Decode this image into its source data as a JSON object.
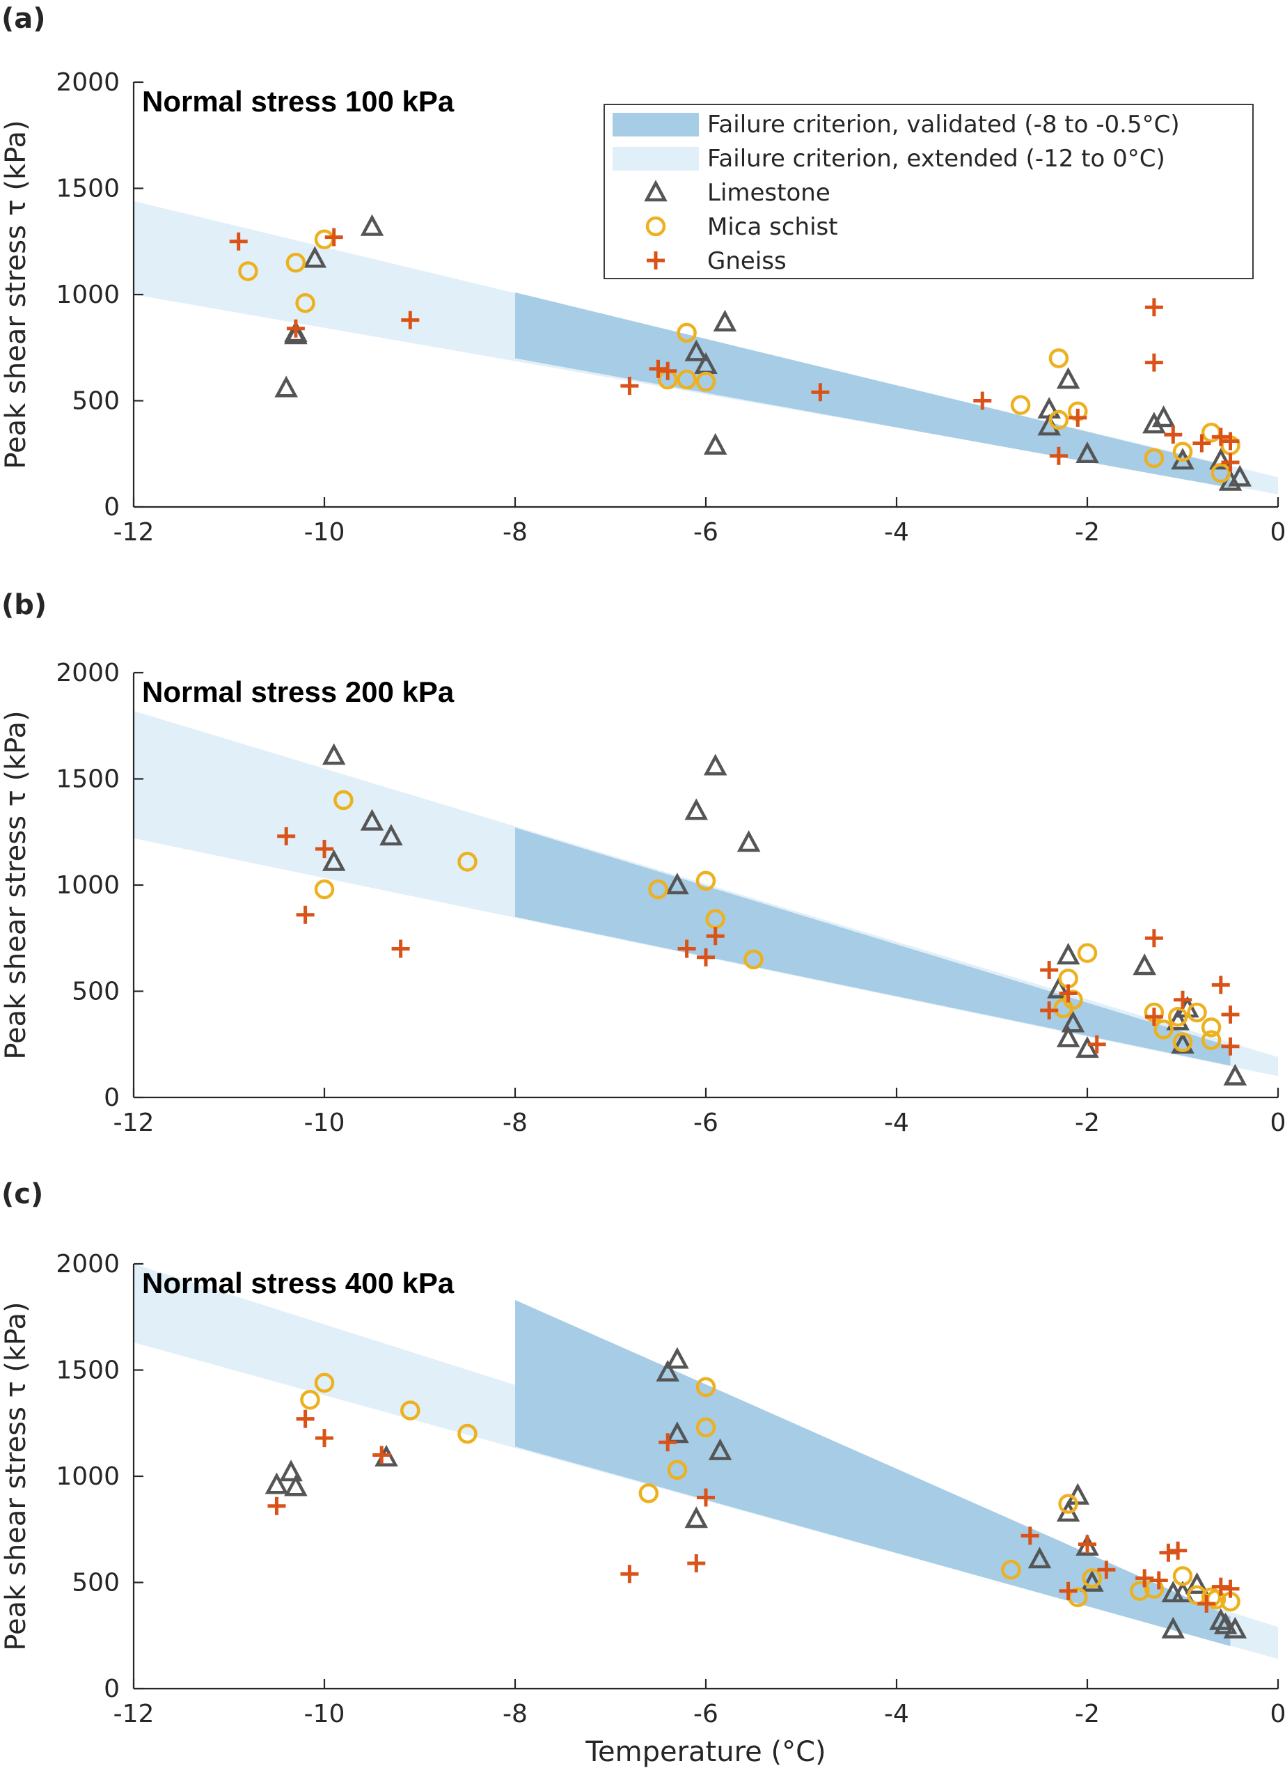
{
  "colors": {
    "validated": "#a6cce6",
    "extended": "#e1eff8",
    "limestone": "#555555",
    "mica_schist": "#edb120",
    "gneiss": "#d95319"
  },
  "legend": {
    "validated": "Failure criterion, validated (-8 to -0.5°C)",
    "extended": "Failure criterion, extended (-12 to 0°C)",
    "limestone": "Limestone",
    "mica_schist": "Mica schist",
    "gneiss": "Gneiss"
  },
  "axes": {
    "xlabel": "Temperature (°C)",
    "ylabel": "Peak shear stress τ (kPa)",
    "xlim": [
      -12,
      0
    ],
    "ylim": [
      0,
      2000
    ],
    "xticks": [
      "-12",
      "-10",
      "-8",
      "-6",
      "-4",
      "-2",
      "0"
    ],
    "yticks": [
      "0",
      "500",
      "1000",
      "1500",
      "2000"
    ]
  },
  "chart_data": [
    {
      "type": "scatter",
      "panel": "(a)",
      "title": "Normal stress 100 kPa",
      "xlabel": "",
      "ylabel": "Peak shear stress τ (kPa)",
      "xlim": [
        -12,
        0
      ],
      "ylim": [
        0,
        2000
      ],
      "grid": false,
      "legend_position": "top-right",
      "band_extended": {
        "x": [
          -12,
          0
        ],
        "upper": [
          1440,
          140
        ],
        "lower": [
          1000,
          60
        ]
      },
      "band_validated": {
        "x": [
          -8,
          -0.5
        ],
        "upper": [
          1010,
          190
        ],
        "lower": [
          700,
          90
        ]
      },
      "series": [
        {
          "name": "Limestone",
          "marker": "triangle",
          "x": [
            -10.4,
            -10.3,
            -10.3,
            -10.1,
            -9.5,
            -6.1,
            -6.0,
            -5.9,
            -5.8,
            -2.4,
            -2.4,
            -2.2,
            -2.0,
            -1.3,
            -1.2,
            -1.0,
            -0.6,
            -0.5,
            -0.4
          ],
          "y": [
            560,
            810,
            820,
            1170,
            1320,
            730,
            670,
            290,
            870,
            460,
            380,
            600,
            250,
            390,
            420,
            220,
            220,
            120,
            140
          ]
        },
        {
          "name": "Mica schist",
          "marker": "circle",
          "x": [
            -10.8,
            -10.3,
            -10.2,
            -10.0,
            -6.2,
            -6.4,
            -6.2,
            -6.0,
            -2.7,
            -2.3,
            -2.3,
            -2.1,
            -1.3,
            -1.0,
            -0.7,
            -0.6,
            -0.5
          ],
          "y": [
            1110,
            1150,
            960,
            1260,
            820,
            600,
            600,
            590,
            480,
            700,
            410,
            450,
            230,
            260,
            350,
            160,
            290
          ]
        },
        {
          "name": "Gneiss",
          "marker": "plus",
          "x": [
            -10.9,
            -10.3,
            -9.9,
            -9.1,
            -6.8,
            -6.5,
            -6.4,
            -4.8,
            -3.1,
            -2.3,
            -2.1,
            -1.3,
            -1.3,
            -1.1,
            -0.8,
            -0.6,
            -0.5,
            -0.5
          ],
          "y": [
            1250,
            840,
            1270,
            880,
            570,
            650,
            640,
            540,
            500,
            240,
            420,
            940,
            680,
            340,
            300,
            330,
            310,
            210
          ]
        }
      ]
    },
    {
      "type": "scatter",
      "panel": "(b)",
      "title": "Normal stress 200 kPa",
      "xlabel": "",
      "ylabel": "Peak shear stress τ (kPa)",
      "xlim": [
        -12,
        0
      ],
      "ylim": [
        0,
        2000
      ],
      "grid": false,
      "band_extended": {
        "x": [
          -12,
          0
        ],
        "upper": [
          1820,
          190
        ],
        "lower": [
          1220,
          100
        ]
      },
      "band_validated": {
        "x": [
          -8,
          -0.5
        ],
        "upper": [
          1270,
          240
        ],
        "lower": [
          850,
          150
        ]
      },
      "series": [
        {
          "name": "Limestone",
          "marker": "triangle",
          "x": [
            -9.9,
            -9.9,
            -9.5,
            -9.3,
            -6.3,
            -6.1,
            -5.9,
            -5.55,
            -2.2,
            -2.3,
            -2.15,
            -2.2,
            -2.0,
            -1.4,
            -1.05,
            -1.0,
            -0.95,
            -0.45
          ],
          "y": [
            1610,
            1110,
            1300,
            1230,
            1000,
            1350,
            1560,
            1200,
            670,
            510,
            350,
            280,
            230,
            620,
            360,
            250,
            420,
            100
          ]
        },
        {
          "name": "Mica schist",
          "marker": "circle",
          "x": [
            -9.8,
            -10.0,
            -8.5,
            -6.5,
            -6.0,
            -5.9,
            -5.5,
            -2.2,
            -2.0,
            -2.15,
            -2.25,
            -1.3,
            -1.2,
            -1.05,
            -0.85,
            -0.7,
            -0.7,
            -1.0
          ],
          "y": [
            1400,
            980,
            1110,
            980,
            1020,
            840,
            650,
            560,
            680,
            460,
            420,
            400,
            320,
            380,
            400,
            330,
            270,
            260
          ]
        },
        {
          "name": "Gneiss",
          "marker": "plus",
          "x": [
            -10.4,
            -10.0,
            -10.2,
            -9.2,
            -6.2,
            -6.0,
            -5.9,
            -2.4,
            -2.4,
            -2.2,
            -1.9,
            -1.3,
            -1.3,
            -1.0,
            -0.6,
            -0.5,
            -0.5
          ],
          "y": [
            1230,
            1170,
            860,
            700,
            700,
            660,
            760,
            600,
            410,
            490,
            250,
            750,
            380,
            460,
            530,
            390,
            240
          ]
        }
      ]
    },
    {
      "type": "scatter",
      "panel": "(c)",
      "title": "Normal stress 400 kPa",
      "xlabel": "Temperature (°C)",
      "ylabel": "Peak shear stress τ (kPa)",
      "xlim": [
        -12,
        0
      ],
      "ylim": [
        0,
        2000
      ],
      "grid": false,
      "band_extended": {
        "x": [
          -12,
          0
        ],
        "upper": [
          2000,
          290
        ],
        "lower": [
          1630,
          140
        ]
      },
      "band_validated": {
        "x": [
          -8,
          -0.5
        ],
        "upper": [
          1830,
          340
        ],
        "lower": [
          1140,
          200
        ]
      },
      "series": [
        {
          "name": "Limestone",
          "marker": "triangle",
          "x": [
            -10.5,
            -10.35,
            -10.3,
            -9.35,
            -6.4,
            -6.3,
            -6.3,
            -6.1,
            -5.85,
            -2.5,
            -2.2,
            -2.1,
            -2.0,
            -1.95,
            -1.1,
            -1.1,
            -1.0,
            -0.85,
            -0.6,
            -0.55,
            -0.45
          ],
          "y": [
            960,
            1020,
            950,
            1090,
            1490,
            1550,
            1200,
            800,
            1120,
            610,
            830,
            910,
            670,
            500,
            450,
            280,
            450,
            490,
            320,
            300,
            280
          ]
        },
        {
          "name": "Mica schist",
          "marker": "circle",
          "x": [
            -10.15,
            -10.0,
            -9.1,
            -8.5,
            -6.6,
            -6.3,
            -6.0,
            -6.0,
            -2.8,
            -2.2,
            -2.1,
            -1.95,
            -1.45,
            -1.3,
            -1.0,
            -0.85,
            -0.7,
            -0.65,
            -0.5
          ],
          "y": [
            1360,
            1440,
            1310,
            1200,
            920,
            1030,
            1420,
            1230,
            560,
            870,
            430,
            520,
            460,
            470,
            530,
            440,
            430,
            420,
            410
          ]
        },
        {
          "name": "Gneiss",
          "marker": "plus",
          "x": [
            -10.5,
            -10.2,
            -10.0,
            -9.4,
            -6.8,
            -6.4,
            -6.1,
            -6.0,
            -2.6,
            -2.2,
            -2.0,
            -1.8,
            -1.4,
            -1.25,
            -1.15,
            -1.05,
            -0.75,
            -0.6,
            -0.5
          ],
          "y": [
            860,
            1270,
            1180,
            1100,
            540,
            1160,
            590,
            900,
            720,
            460,
            680,
            560,
            520,
            510,
            640,
            650,
            400,
            480,
            470
          ]
        }
      ]
    }
  ]
}
